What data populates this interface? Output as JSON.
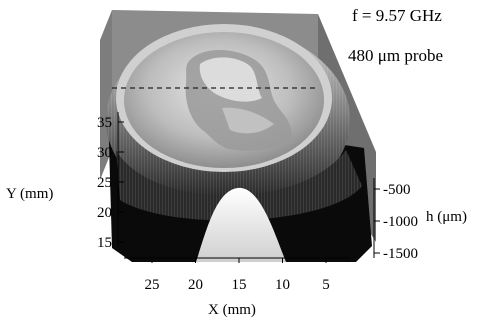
{
  "annotations": {
    "frequency": "f = 9.57 GHz",
    "probe": "480 μm probe"
  },
  "chart_data": {
    "type": "surface-3d",
    "title": "",
    "xlabel": "X (mm)",
    "ylabel": "Y (mm)",
    "zlabel": "h (μm)",
    "x_ticks": [
      "25",
      "20",
      "15",
      "10",
      "5"
    ],
    "y_ticks": [
      "35",
      "30",
      "25",
      "20",
      "15"
    ],
    "z_ticks": [
      "-500",
      "-1000",
      "-1500"
    ],
    "xlim": [
      2,
      29
    ],
    "ylim": [
      13,
      38
    ],
    "zlim": [
      -1700,
      0
    ],
    "colormap": "grayscale",
    "scan_line_marker": "dashed horizontal line"
  }
}
